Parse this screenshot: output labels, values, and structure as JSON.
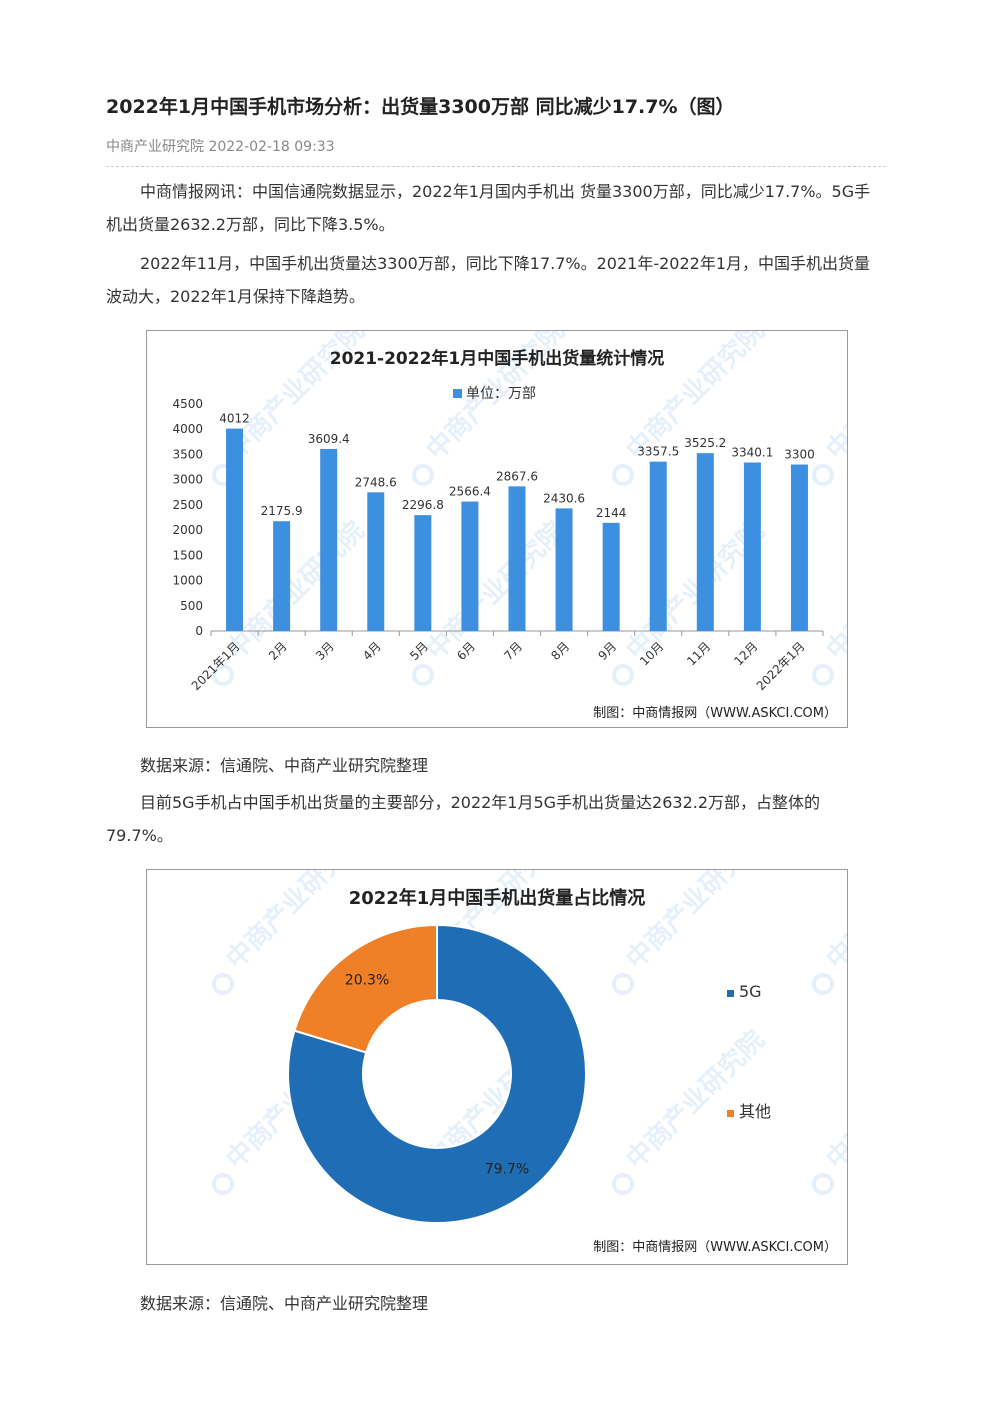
{
  "article": {
    "title": "2022年1月中国手机市场分析：出货量3300万部 同比减少17.7%（图）",
    "meta": "中商产业研究院 2022-02-18 09:33",
    "para1": "中商情报网讯：中国信通院数据显示，2022年1月国内手机出 货量3300万部，同比减少17.7%。5G手机出货量2632.2万部，同比下降3.5%。",
    "para2": "2022年11月，中国手机出货量达3300万部，同比下降17.7%。2021年-2022年1月，中国手机出货量波动大，2022年1月保持下降趋势。",
    "source1": "数据来源：信通院、中商产业研究院整理",
    "para3": "目前5G手机占中国手机出货量的主要部分，2022年1月5G手机出货量达2632.2万部，占整体的79.7%。",
    "source2": "数据来源：信通院、中商产业研究院整理"
  },
  "chart_data": [
    {
      "type": "bar",
      "title": "2021-2022年1月中国手机出货量统计情况",
      "legend": "单位：万部",
      "legend_position": "top-center",
      "categories": [
        "2021年1月",
        "2月",
        "3月",
        "4月",
        "5月",
        "6月",
        "7月",
        "8月",
        "9月",
        "10月",
        "11月",
        "12月",
        "2022年1月"
      ],
      "values": [
        4012,
        2175.9,
        3609.4,
        2748.6,
        2296.8,
        2566.4,
        2867.6,
        2430.6,
        2144,
        3357.5,
        3525.2,
        3340.1,
        3300
      ],
      "value_labels": [
        "4012",
        "2175.9",
        "3609.4",
        "2748.6",
        "2296.8",
        "2566.4",
        "2867.6",
        "2430.6",
        "2144",
        "3357.5",
        "3525.2",
        "3340.1",
        "3300"
      ],
      "ylim": [
        0,
        4500
      ],
      "yticks": [
        "0",
        "500",
        "1000",
        "1500",
        "2000",
        "2500",
        "3000",
        "3500",
        "4000",
        "4500"
      ],
      "grid": false,
      "bar_color": "#3d8fe0",
      "credit": "制图：中商情报网（WWW.ASKCI.COM）"
    },
    {
      "type": "pie",
      "title": "2022年1月中国手机出货量占比情况",
      "slices": [
        {
          "name": "5G",
          "value": 79.7,
          "label": "79.7%",
          "color": "#1f6db5"
        },
        {
          "name": "其他",
          "value": 20.3,
          "label": "20.3%",
          "color": "#f08028"
        }
      ],
      "legend_position": "right",
      "credit": "制图：中商情报网（WWW.ASKCI.COM）"
    }
  ],
  "watermark": "中商产业研究院"
}
